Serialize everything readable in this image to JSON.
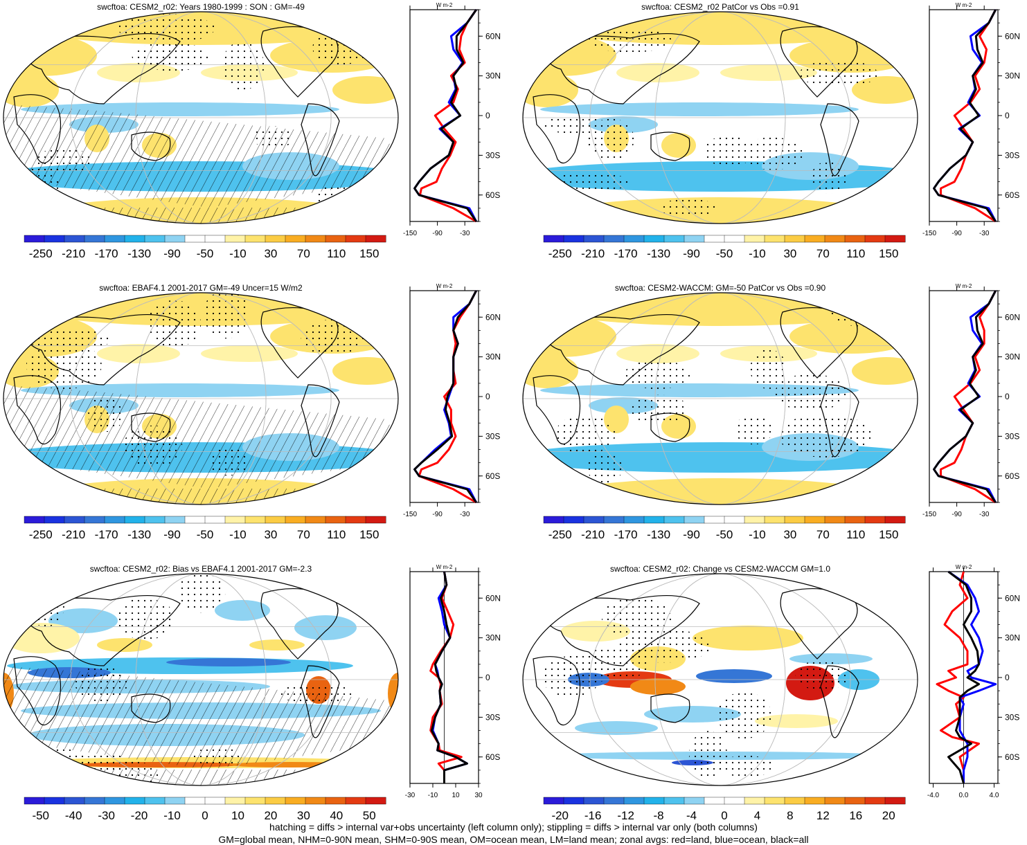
{
  "chart_data": [
    {
      "type": "heatmap",
      "title": "swcftoa: CESM2_r02: Years 1980-1999 : SON : GM=-49",
      "colorbar_ticks": [
        "-250",
        "-210",
        "-170",
        "-130",
        "-90",
        "-50",
        "-10",
        "30",
        "70",
        "110",
        "150"
      ],
      "colorbar_range": [
        -270,
        170
      ],
      "hatching": true,
      "stippling": true,
      "zonal": {
        "units": "W m-2",
        "xticks": [
          "-150",
          "-90",
          "-30"
        ],
        "xlim": [
          -150,
          0
        ],
        "yticks": [
          "60N",
          "30N",
          "0",
          "30S",
          "60S"
        ],
        "yvals": [
          60,
          30,
          0,
          -30,
          -60
        ],
        "ylim": [
          -80,
          80
        ],
        "lats": [
          80,
          70,
          60,
          50,
          40,
          30,
          20,
          10,
          0,
          -10,
          -20,
          -30,
          -40,
          -50,
          -55,
          -60,
          -70,
          -80
        ],
        "series": [
          {
            "color": "red",
            "values": [
              -5,
              -25,
              -38,
              -42,
              -30,
              -60,
              -45,
              -55,
              -95,
              -75,
              -50,
              -62,
              -80,
              -92,
              -125,
              -128,
              -55,
              -5
            ]
          },
          {
            "color": "blue",
            "values": [
              -5,
              -25,
              -60,
              -55,
              -35,
              -55,
              -50,
              -65,
              -40,
              -85,
              -55,
              -65,
              -105,
              -130,
              -140,
              -130,
              -20,
              -5
            ]
          },
          {
            "color": "black",
            "values": [
              -5,
              -25,
              -48,
              -48,
              -33,
              -55,
              -48,
              -60,
              -40,
              -82,
              -55,
              -65,
              -105,
              -130,
              -140,
              -130,
              -25,
              -5
            ]
          }
        ]
      }
    },
    {
      "type": "heatmap",
      "title": "swcftoa: CESM2_r02 PatCor vs Obs =0.91",
      "colorbar_ticks": [
        "-250",
        "-210",
        "-170",
        "-130",
        "-90",
        "-50",
        "-10",
        "30",
        "70",
        "110",
        "150"
      ],
      "colorbar_range": [
        -270,
        170
      ],
      "hatching": false,
      "stippling": true,
      "zonal": {
        "units": "W m-2",
        "xticks": [
          "-150",
          "-90",
          "-30"
        ],
        "xlim": [
          -150,
          0
        ],
        "yticks": [
          "60N",
          "30N",
          "0",
          "30S",
          "60S"
        ],
        "yvals": [
          60,
          30,
          0,
          -30,
          -60
        ],
        "ylim": [
          -80,
          80
        ],
        "lats": [
          80,
          70,
          60,
          50,
          40,
          30,
          20,
          10,
          0,
          -10,
          -20,
          -30,
          -40,
          -50,
          -55,
          -60,
          -70,
          -80
        ],
        "series": [
          {
            "color": "red",
            "values": [
              -5,
              -20,
              -40,
              -25,
              -30,
              -50,
              -40,
              -60,
              -95,
              -75,
              -55,
              -70,
              -80,
              -95,
              -125,
              -125,
              -50,
              -5
            ]
          },
          {
            "color": "blue",
            "values": [
              -5,
              -20,
              -60,
              -55,
              -35,
              -55,
              -50,
              -65,
              -40,
              -85,
              -55,
              -70,
              -105,
              -130,
              -140,
              -130,
              -20,
              -5
            ]
          },
          {
            "color": "black",
            "values": [
              -5,
              -20,
              -48,
              -45,
              -33,
              -55,
              -48,
              -62,
              -42,
              -82,
              -55,
              -70,
              -105,
              -130,
              -140,
              -130,
              -25,
              -5
            ]
          }
        ]
      }
    },
    {
      "type": "heatmap",
      "title": "swcftoa: EBAF4.1 2001-2017 GM=-49 Uncer=15 W/m2",
      "colorbar_ticks": [
        "-250",
        "-210",
        "-170",
        "-130",
        "-90",
        "-50",
        "-10",
        "30",
        "70",
        "110",
        "150"
      ],
      "colorbar_range": [
        -270,
        170
      ],
      "hatching": true,
      "stippling": true,
      "zonal": {
        "units": "W m-2",
        "xticks": [
          "-150",
          "-90",
          "-30"
        ],
        "xlim": [
          -150,
          0
        ],
        "yticks": [
          "60N",
          "30N",
          "0",
          "30S",
          "60S"
        ],
        "yvals": [
          60,
          30,
          0,
          -30,
          -60
        ],
        "ylim": [
          -80,
          80
        ],
        "lats": [
          80,
          70,
          60,
          50,
          40,
          30,
          20,
          10,
          0,
          -10,
          -20,
          -30,
          -40,
          -50,
          -55,
          -60,
          -70,
          -80
        ],
        "series": [
          {
            "color": "red",
            "values": [
              -5,
              -20,
              -40,
              -55,
              -50,
              -55,
              -55,
              -50,
              -75,
              -60,
              -60,
              -50,
              -65,
              -90,
              -125,
              -130,
              -55,
              -5
            ]
          },
          {
            "color": "blue",
            "values": [
              -5,
              -20,
              -55,
              -55,
              -45,
              -55,
              -55,
              -55,
              -65,
              -75,
              -65,
              -60,
              -95,
              -125,
              -140,
              -130,
              -20,
              -5
            ]
          },
          {
            "color": "black",
            "values": [
              -5,
              -20,
              -45,
              -55,
              -45,
              -55,
              -55,
              -55,
              -68,
              -72,
              -63,
              -58,
              -90,
              -125,
              -140,
              -130,
              -25,
              -5
            ]
          }
        ]
      }
    },
    {
      "type": "heatmap",
      "title": "swcftoa: CESM2-WACCM: GM=-50 PatCor vs Obs =0.90",
      "colorbar_ticks": [
        "-250",
        "-210",
        "-170",
        "-130",
        "-90",
        "-50",
        "-10",
        "30",
        "70",
        "110",
        "150"
      ],
      "colorbar_range": [
        -270,
        170
      ],
      "hatching": false,
      "stippling": true,
      "zonal": {
        "units": "W m-2",
        "xticks": [
          "-150",
          "-90",
          "-30"
        ],
        "xlim": [
          -150,
          0
        ],
        "yticks": [
          "60N",
          "30N",
          "0",
          "30S",
          "60S"
        ],
        "yvals": [
          60,
          30,
          0,
          -30,
          -60
        ],
        "ylim": [
          -80,
          80
        ],
        "lats": [
          80,
          70,
          60,
          50,
          40,
          30,
          20,
          10,
          0,
          -10,
          -20,
          -30,
          -40,
          -50,
          -55,
          -60,
          -70,
          -80
        ],
        "series": [
          {
            "color": "red",
            "values": [
              -5,
              -20,
              -40,
              -30,
              -30,
              -50,
              -40,
              -60,
              -95,
              -75,
              -55,
              -70,
              -80,
              -95,
              -125,
              -125,
              -50,
              -5
            ]
          },
          {
            "color": "blue",
            "values": [
              -5,
              -20,
              -60,
              -55,
              -35,
              -55,
              -50,
              -65,
              -40,
              -85,
              -55,
              -70,
              -105,
              -130,
              -140,
              -130,
              -20,
              -5
            ]
          },
          {
            "color": "black",
            "values": [
              -5,
              -20,
              -48,
              -45,
              -33,
              -55,
              -48,
              -62,
              -42,
              -82,
              -55,
              -70,
              -105,
              -130,
              -140,
              -130,
              -25,
              -5
            ]
          }
        ]
      }
    },
    {
      "type": "heatmap",
      "title": "swcftoa: CESM2_r02: Bias vs EBAF4.1 2001-2017  GM=-2.3",
      "colorbar_ticks": [
        "-50",
        "-40",
        "-30",
        "-20",
        "-10",
        "0",
        "10",
        "20",
        "30",
        "40",
        "50"
      ],
      "colorbar_range": [
        -55,
        55
      ],
      "hatching": true,
      "stippling": true,
      "zonal": {
        "units": "W m-2",
        "xticks": [
          "-30",
          "-10",
          "10",
          "30"
        ],
        "xlim": [
          -30,
          30
        ],
        "yticks": [
          "60N",
          "30N",
          "0",
          "30S",
          "60S"
        ],
        "yvals": [
          60,
          30,
          0,
          -30,
          -60
        ],
        "ylim": [
          -80,
          80
        ],
        "lats": [
          80,
          70,
          60,
          50,
          40,
          30,
          20,
          10,
          5,
          0,
          -5,
          -10,
          -20,
          -30,
          -40,
          -50,
          -55,
          -60,
          -65,
          -70,
          -80
        ],
        "series": [
          {
            "color": "red",
            "values": [
              0,
              2,
              -2,
              3,
              8,
              5,
              -3,
              -10,
              -12,
              -5,
              -3,
              -4,
              -2,
              -10,
              -12,
              -5,
              -4,
              15,
              -5,
              0,
              0
            ]
          },
          {
            "color": "blue",
            "values": [
              0,
              2,
              -5,
              -2,
              0,
              5,
              -2,
              -8,
              -6,
              -5,
              -2,
              -4,
              -3,
              -8,
              -10,
              -5,
              -6,
              10,
              20,
              0,
              0
            ]
          },
          {
            "color": "black",
            "values": [
              0,
              2,
              -3,
              0,
              2,
              5,
              -2,
              -8,
              -7,
              -5,
              -2,
              -4,
              -3,
              -8,
              -11,
              -5,
              -6,
              10,
              20,
              0,
              0
            ]
          }
        ]
      }
    },
    {
      "type": "heatmap",
      "title": "swcftoa: CESM2_r02: Change vs CESM2-WACCM GM=1.0",
      "colorbar_ticks": [
        "-20",
        "-16",
        "-12",
        "-8",
        "-4",
        "0",
        "4",
        "8",
        "12",
        "16",
        "20"
      ],
      "colorbar_range": [
        -22,
        22
      ],
      "hatching": false,
      "stippling": true,
      "zonal": {
        "units": "W m-2",
        "xticks": [
          "-4.0",
          "0.0",
          "4.0"
        ],
        "xlim": [
          -4.5,
          4.5
        ],
        "yticks": [
          "60N",
          "30N",
          "0",
          "30S",
          "60S"
        ],
        "yvals": [
          60,
          30,
          0,
          -30,
          -60
        ],
        "ylim": [
          -80,
          80
        ],
        "lats": [
          80,
          70,
          60,
          50,
          40,
          30,
          20,
          10,
          5,
          0,
          -5,
          -10,
          -15,
          -20,
          -30,
          -40,
          -45,
          -50,
          -60,
          -70,
          -80
        ],
        "series": [
          {
            "color": "red",
            "values": [
              0,
              -0.5,
              0.5,
              -1.5,
              -2.5,
              -0.5,
              0.5,
              0.5,
              -2,
              -1,
              -3.5,
              -2,
              0,
              -1,
              -0.5,
              -3,
              -1.5,
              2,
              -0.5,
              0,
              0
            ]
          },
          {
            "color": "blue",
            "values": [
              -2,
              0.5,
              1.5,
              2,
              1,
              2,
              2.5,
              2,
              0.5,
              1,
              4.2,
              2,
              -0.5,
              0,
              -0.5,
              -0.5,
              0,
              0.5,
              0.5,
              0,
              0
            ]
          },
          {
            "color": "black",
            "values": [
              -2,
              0.3,
              1,
              1,
              0,
              1,
              1.8,
              2,
              1.5,
              0.5,
              2,
              0.5,
              -0.5,
              -0.5,
              -0.5,
              -1,
              -0.5,
              1,
              -2,
              -0.5,
              0
            ]
          }
        ]
      }
    }
  ],
  "footer": {
    "line1": "hatching = diffs > internal var+obs uncertainty (left column only); stippling = diffs > internal var only (both columns)",
    "line2": "GM=global mean, NHM=0-90N mean, SHM=0-90S mean, OM=ocean mean, LM=land mean; zonal avgs: red=land, blue=ocean, black=all"
  }
}
